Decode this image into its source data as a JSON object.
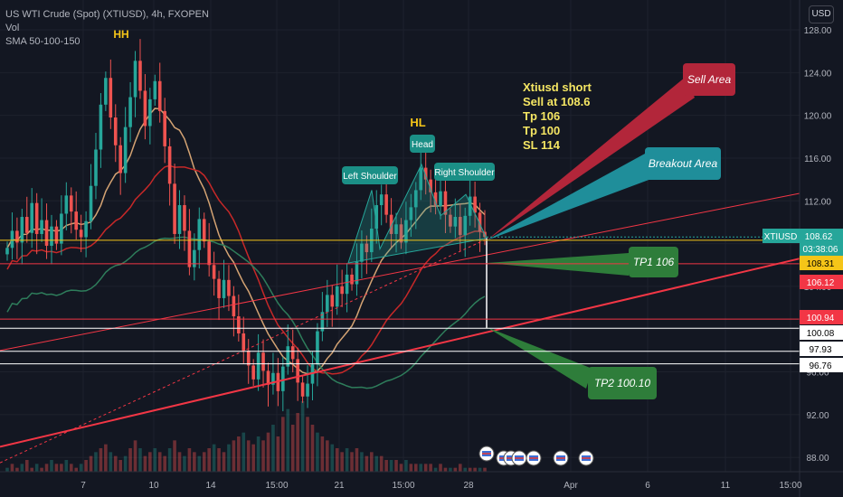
{
  "header": {
    "symbol_title": "US WTI Crude (Spot) (XTIUSD), 4h, FXOPEN",
    "volume_label": "Vol",
    "sma_label": "SMA 50-100-150",
    "currency_button": "USD"
  },
  "colors": {
    "background": "#131722",
    "up": "#26a69a",
    "down": "#ef5350",
    "grid": "#1e222d",
    "sma50": "#d4a373",
    "sma100": "#c62828",
    "sma150": "#2e7d5b"
  },
  "chart_data": {
    "type": "candlestick",
    "symbol": "XTIUSD",
    "interval": "4h",
    "ylim": [
      86.8,
      130
    ],
    "y_ticks": [
      128.0,
      124.0,
      120.0,
      116.0,
      112.0,
      108.0,
      104.0,
      100.0,
      96.0,
      92.0,
      88.0
    ],
    "x_ticks": [
      "7",
      "10",
      "14",
      "15:00",
      "21",
      "15:00",
      "28",
      "Apr",
      "6",
      "11",
      "15:00"
    ],
    "price_tags": [
      {
        "label": "XTIUSD",
        "value": "108.62",
        "sub": "03:38:06",
        "color": "#26a69a"
      },
      {
        "value": "108.31",
        "color": "#f5c518"
      },
      {
        "value": "106.12",
        "color": "#f23645"
      },
      {
        "value": "100.94",
        "color": "#f23645"
      },
      {
        "value": "100.08",
        "color": "#ffffff"
      },
      {
        "value": "97.93",
        "color": "#ffffff"
      },
      {
        "value": "96.76",
        "color": "#ffffff"
      }
    ],
    "ohlc_close_series": [
      107.6,
      109.2,
      108.1,
      110.5,
      109.0,
      111.8,
      108.9,
      110.2,
      107.8,
      109.6,
      108.0,
      110.8,
      112.5,
      111.0,
      109.3,
      108.6,
      110.1,
      113.4,
      116.8,
      121.0,
      123.5,
      119.8,
      117.2,
      114.6,
      118.9,
      121.7,
      125.1,
      122.3,
      119.0,
      121.5,
      123.2,
      120.4,
      117.1,
      113.6,
      108.9,
      111.6,
      109.2,
      105.8,
      107.4,
      110.3,
      108.2,
      106.0,
      104.7,
      102.9,
      104.6,
      103.1,
      101.2,
      99.6,
      98.0,
      96.6,
      95.3,
      97.8,
      96.1,
      94.8,
      95.9,
      94.2,
      96.5,
      98.4,
      97.2,
      95.0,
      93.7,
      94.9,
      96.7,
      99.8,
      101.6,
      103.2,
      102.1,
      104.0,
      103.3,
      105.1,
      104.2,
      106.3,
      108.0,
      107.2,
      109.4,
      111.6,
      112.6,
      110.7,
      108.9,
      109.8,
      108.1,
      110.2,
      111.4,
      113.0,
      115.1,
      114.0,
      112.8,
      111.5,
      112.9,
      110.7,
      109.6,
      110.5,
      108.8,
      110.6,
      112.4,
      110.9,
      109.1,
      108.62
    ],
    "volume_series": [
      1,
      2,
      1,
      2,
      3,
      1,
      2,
      1,
      2,
      3,
      2,
      2,
      3,
      2,
      1,
      2,
      3,
      4,
      5,
      6,
      7,
      5,
      4,
      3,
      4,
      6,
      8,
      6,
      4,
      5,
      6,
      5,
      4,
      6,
      8,
      5,
      4,
      6,
      5,
      4,
      5,
      6,
      7,
      6,
      5,
      7,
      8,
      9,
      10,
      8,
      7,
      9,
      8,
      10,
      12,
      9,
      14,
      16,
      12,
      15,
      18,
      14,
      12,
      10,
      9,
      8,
      7,
      6,
      5,
      6,
      5,
      6,
      5,
      4,
      5,
      4,
      4,
      3,
      3,
      3,
      2,
      3,
      2,
      2,
      2,
      2,
      2,
      1,
      2,
      1,
      1,
      1,
      2,
      1,
      1,
      1,
      1,
      1
    ],
    "annotations": {
      "hh": "HH",
      "hl": "HL",
      "left_shoulder": "Left Shoulder",
      "head": "Head",
      "right_shoulder": "Right Shoulder",
      "trade_note": [
        "Xtiusd short",
        "Sell at 108.6",
        "Tp 106",
        "Tp 100",
        "SL 114"
      ],
      "sell_area": "Sell Area",
      "breakout_area": "Breakout Area",
      "tp1": "TP1 106",
      "tp2": "TP2 100.10"
    }
  }
}
